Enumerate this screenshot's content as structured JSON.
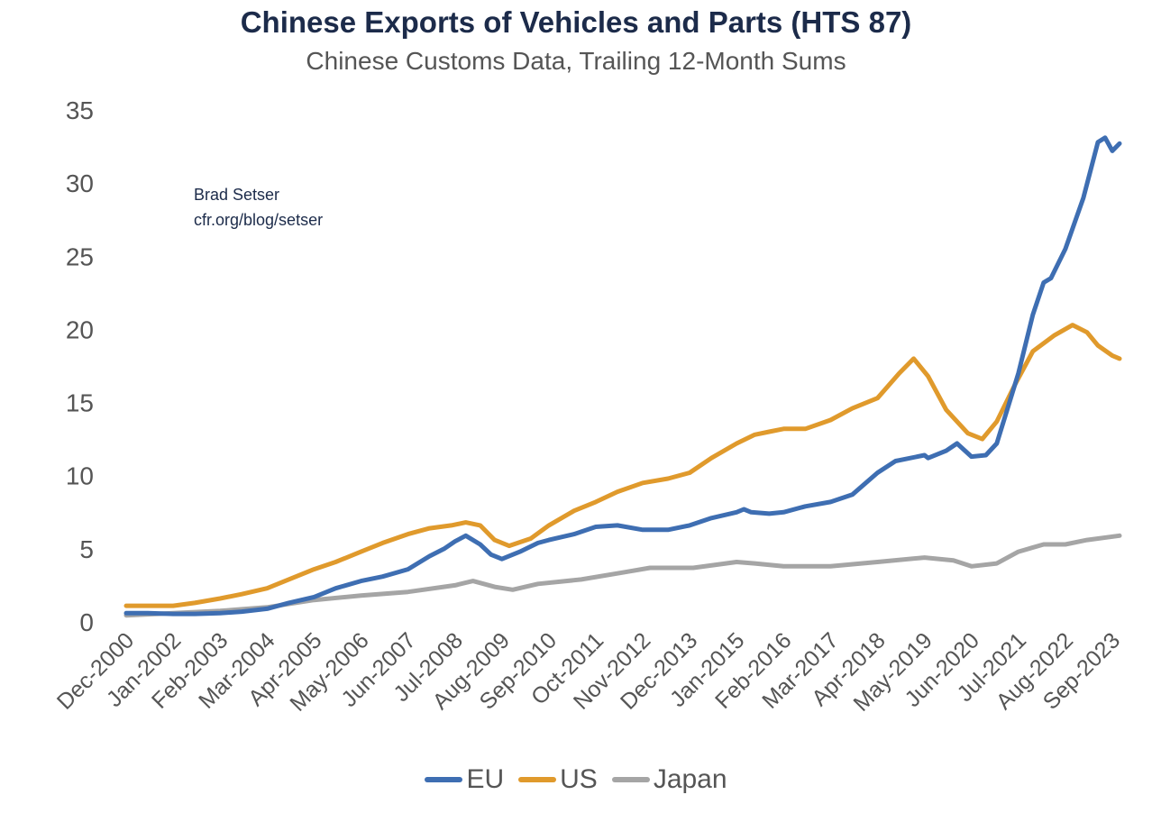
{
  "chart_data": {
    "type": "line",
    "title": "Chinese Exports of Vehicles and Parts (HTS 87)",
    "subtitle": "Chinese Customs Data, Trailing 12-Month Sums",
    "annotation": [
      "Brad Setser",
      "cfr.org/blog/setser"
    ],
    "xlabel": "",
    "ylabel": "",
    "ylim": [
      0,
      35
    ],
    "yticks": [
      0,
      5,
      10,
      15,
      20,
      25,
      30,
      35
    ],
    "grid": false,
    "legend_position": "bottom",
    "x_tick_labels": [
      "Dec-2000",
      "Jan-2002",
      "Feb-2003",
      "Mar-2004",
      "Apr-2005",
      "May-2006",
      "Jun-2007",
      "Jul-2008",
      "Aug-2009",
      "Sep-2010",
      "Oct-2011",
      "Nov-2012",
      "Dec-2013",
      "Jan-2015",
      "Feb-2016",
      "Mar-2017",
      "Apr-2018",
      "May-2019",
      "Jun-2020",
      "Jul-2021",
      "Aug-2022",
      "Sep-2023"
    ],
    "series": [
      {
        "name": "EU",
        "color": "#3e6eb2",
        "points": [
          [
            "2000-12",
            0.6
          ],
          [
            "2001-06",
            0.6
          ],
          [
            "2002-01",
            0.55
          ],
          [
            "2002-07",
            0.55
          ],
          [
            "2003-02",
            0.6
          ],
          [
            "2003-08",
            0.7
          ],
          [
            "2004-03",
            0.9
          ],
          [
            "2004-09",
            1.3
          ],
          [
            "2005-04",
            1.7
          ],
          [
            "2005-10",
            2.3
          ],
          [
            "2006-05",
            2.8
          ],
          [
            "2006-11",
            3.1
          ],
          [
            "2007-06",
            3.6
          ],
          [
            "2007-12",
            4.5
          ],
          [
            "2008-04",
            5.0
          ],
          [
            "2008-07",
            5.5
          ],
          [
            "2008-10",
            5.9
          ],
          [
            "2009-02",
            5.3
          ],
          [
            "2009-05",
            4.6
          ],
          [
            "2009-08",
            4.3
          ],
          [
            "2010-01",
            4.8
          ],
          [
            "2010-06",
            5.4
          ],
          [
            "2010-09",
            5.6
          ],
          [
            "2011-04",
            6.0
          ],
          [
            "2011-10",
            6.5
          ],
          [
            "2012-04",
            6.6
          ],
          [
            "2012-11",
            6.3
          ],
          [
            "2013-06",
            6.3
          ],
          [
            "2013-12",
            6.6
          ],
          [
            "2014-06",
            7.1
          ],
          [
            "2015-01",
            7.5
          ],
          [
            "2015-03",
            7.7
          ],
          [
            "2015-05",
            7.5
          ],
          [
            "2015-10",
            7.4
          ],
          [
            "2016-02",
            7.5
          ],
          [
            "2016-08",
            7.9
          ],
          [
            "2017-03",
            8.2
          ],
          [
            "2017-09",
            8.7
          ],
          [
            "2018-04",
            10.2
          ],
          [
            "2018-09",
            11.0
          ],
          [
            "2019-05",
            11.4
          ],
          [
            "2019-06",
            11.2
          ],
          [
            "2019-11",
            11.7
          ],
          [
            "2020-02",
            12.2
          ],
          [
            "2020-06",
            11.3
          ],
          [
            "2020-10",
            11.4
          ],
          [
            "2021-01",
            12.2
          ],
          [
            "2021-07",
            17.0
          ],
          [
            "2021-11",
            21.0
          ],
          [
            "2022-02",
            23.2
          ],
          [
            "2022-04",
            23.5
          ],
          [
            "2022-08",
            25.5
          ],
          [
            "2023-01",
            29.0
          ],
          [
            "2023-05",
            32.8
          ],
          [
            "2023-07",
            33.1
          ],
          [
            "2023-09",
            32.2
          ],
          [
            "2023-11",
            32.7
          ]
        ]
      },
      {
        "name": "US",
        "color": "#e09a2c",
        "points": [
          [
            "2000-12",
            1.1
          ],
          [
            "2001-06",
            1.1
          ],
          [
            "2002-01",
            1.1
          ],
          [
            "2002-07",
            1.3
          ],
          [
            "2003-02",
            1.6
          ],
          [
            "2003-08",
            1.9
          ],
          [
            "2004-03",
            2.3
          ],
          [
            "2004-09",
            2.9
          ],
          [
            "2005-04",
            3.6
          ],
          [
            "2005-10",
            4.1
          ],
          [
            "2006-05",
            4.8
          ],
          [
            "2006-11",
            5.4
          ],
          [
            "2007-06",
            6.0
          ],
          [
            "2007-12",
            6.4
          ],
          [
            "2008-06",
            6.6
          ],
          [
            "2008-10",
            6.8
          ],
          [
            "2009-02",
            6.6
          ],
          [
            "2009-06",
            5.6
          ],
          [
            "2009-10",
            5.2
          ],
          [
            "2010-04",
            5.7
          ],
          [
            "2010-09",
            6.6
          ],
          [
            "2011-04",
            7.6
          ],
          [
            "2011-10",
            8.2
          ],
          [
            "2012-04",
            8.9
          ],
          [
            "2012-11",
            9.5
          ],
          [
            "2013-06",
            9.8
          ],
          [
            "2013-12",
            10.2
          ],
          [
            "2014-06",
            11.2
          ],
          [
            "2015-01",
            12.2
          ],
          [
            "2015-06",
            12.8
          ],
          [
            "2015-10",
            13.0
          ],
          [
            "2016-02",
            13.2
          ],
          [
            "2016-08",
            13.2
          ],
          [
            "2017-03",
            13.8
          ],
          [
            "2017-09",
            14.6
          ],
          [
            "2018-04",
            15.3
          ],
          [
            "2018-10",
            17.0
          ],
          [
            "2019-02",
            18.0
          ],
          [
            "2019-06",
            16.8
          ],
          [
            "2019-11",
            14.5
          ],
          [
            "2020-05",
            12.9
          ],
          [
            "2020-09",
            12.5
          ],
          [
            "2021-01",
            13.7
          ],
          [
            "2021-06",
            16.2
          ],
          [
            "2021-11",
            18.5
          ],
          [
            "2022-05",
            19.6
          ],
          [
            "2022-10",
            20.3
          ],
          [
            "2023-02",
            19.8
          ],
          [
            "2023-05",
            18.9
          ],
          [
            "2023-09",
            18.2
          ],
          [
            "2023-11",
            18.0
          ]
        ]
      },
      {
        "name": "Japan",
        "color": "#a5a5a5",
        "points": [
          [
            "2000-12",
            0.45
          ],
          [
            "2002-01",
            0.6
          ],
          [
            "2003-02",
            0.75
          ],
          [
            "2004-03",
            1.0
          ],
          [
            "2005-04",
            1.5
          ],
          [
            "2006-05",
            1.8
          ],
          [
            "2007-06",
            2.05
          ],
          [
            "2008-07",
            2.5
          ],
          [
            "2008-12",
            2.8
          ],
          [
            "2009-06",
            2.4
          ],
          [
            "2009-11",
            2.2
          ],
          [
            "2010-06",
            2.6
          ],
          [
            "2011-06",
            2.9
          ],
          [
            "2012-06",
            3.4
          ],
          [
            "2013-01",
            3.7
          ],
          [
            "2014-01",
            3.7
          ],
          [
            "2015-01",
            4.1
          ],
          [
            "2015-06",
            4.0
          ],
          [
            "2016-02",
            3.8
          ],
          [
            "2017-03",
            3.8
          ],
          [
            "2018-04",
            4.1
          ],
          [
            "2019-05",
            4.4
          ],
          [
            "2020-01",
            4.2
          ],
          [
            "2020-06",
            3.8
          ],
          [
            "2021-01",
            4.0
          ],
          [
            "2021-07",
            4.8
          ],
          [
            "2022-02",
            5.3
          ],
          [
            "2022-08",
            5.3
          ],
          [
            "2023-02",
            5.6
          ],
          [
            "2023-11",
            5.9
          ]
        ]
      }
    ]
  }
}
